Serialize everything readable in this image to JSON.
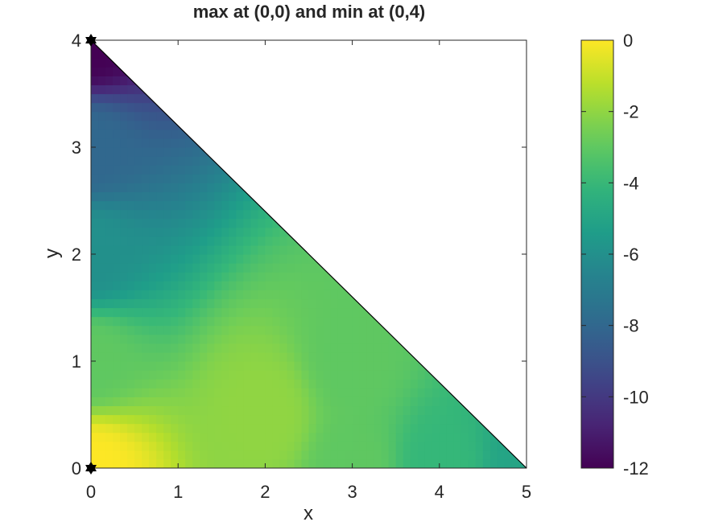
{
  "chart_data": {
    "type": "heatmap",
    "title": "max at (0,0) and min at (0,4)",
    "xlabel": "x",
    "ylabel": "y",
    "xlim": [
      0,
      5
    ],
    "ylim": [
      0,
      4
    ],
    "xticks": [
      "0",
      "1",
      "2",
      "3",
      "4",
      "5"
    ],
    "yticks": [
      "0",
      "1",
      "2",
      "3",
      "4"
    ],
    "domain": "triangle with vertices (0,0), (5,0), (0,4)",
    "colormap": "viridis",
    "clim": [
      -12,
      0
    ],
    "colorbar_ticks": [
      "0",
      "-2",
      "-4",
      "-6",
      "-8",
      "-10",
      "-12"
    ],
    "grid": false,
    "sample_values": [
      {
        "x": 0,
        "y": 0,
        "value": 0
      },
      {
        "x": 0,
        "y": 1,
        "value": -3
      },
      {
        "x": 0,
        "y": 2,
        "value": -6
      },
      {
        "x": 0,
        "y": 3,
        "value": -8
      },
      {
        "x": 0,
        "y": 4,
        "value": -12
      },
      {
        "x": 2,
        "y": 0.5,
        "value": -2
      },
      {
        "x": 3,
        "y": 0,
        "value": -3
      },
      {
        "x": 3,
        "y": 1,
        "value": -3
      },
      {
        "x": 4,
        "y": 0,
        "value": -4
      },
      {
        "x": 5,
        "y": 0,
        "value": -5
      }
    ],
    "markers": [
      {
        "label": "max",
        "x": 0,
        "y": 0
      },
      {
        "label": "min",
        "x": 0,
        "y": 4
      }
    ]
  }
}
